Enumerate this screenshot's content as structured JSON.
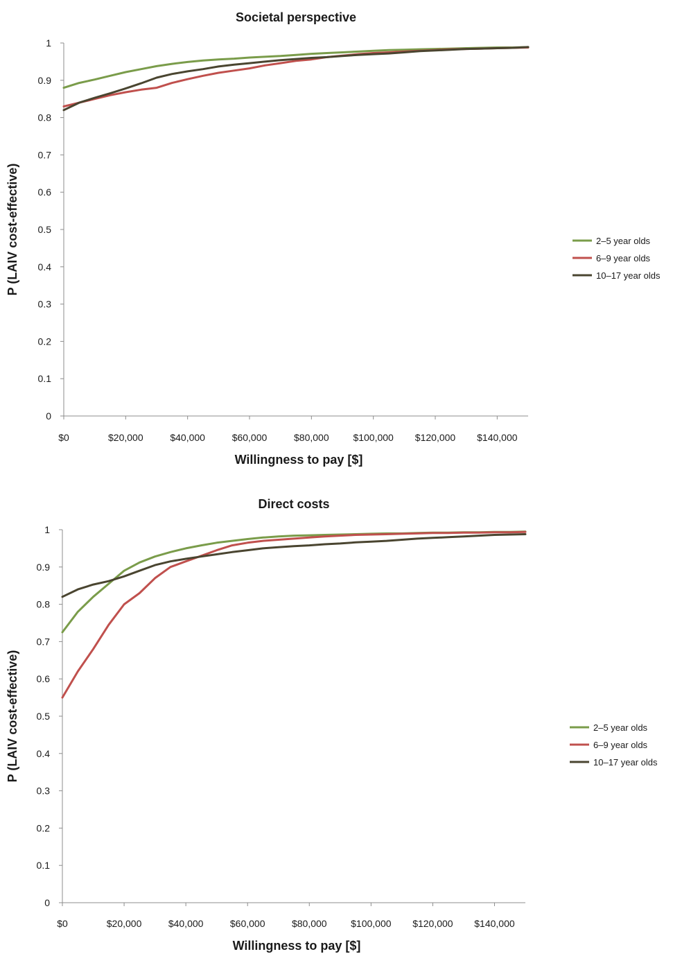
{
  "chart_data": [
    {
      "type": "line",
      "title": "Societal perspective",
      "xlabel": "Willingness to pay [$]",
      "ylabel": "P (LAIV cost-effective)",
      "xlim": [
        0,
        150000
      ],
      "ylim": [
        0,
        1
      ],
      "x_ticks": [
        "$0",
        "$20,000",
        "$40,000",
        "$60,000",
        "$80,000",
        "$100,000",
        "$120,000",
        "$140,000"
      ],
      "y_ticks": [
        "0",
        "0.1",
        "0.2",
        "0.3",
        "0.4",
        "0.5",
        "0.6",
        "0.7",
        "0.8",
        "0.9",
        "1"
      ],
      "grid": false,
      "legend_position": "right",
      "x": [
        0,
        5000,
        10000,
        15000,
        20000,
        25000,
        30000,
        35000,
        40000,
        45000,
        50000,
        55000,
        60000,
        65000,
        70000,
        75000,
        80000,
        85000,
        90000,
        95000,
        100000,
        105000,
        110000,
        115000,
        120000,
        125000,
        130000,
        135000,
        140000,
        145000,
        150000
      ],
      "series": [
        {
          "name": "2–5 year olds",
          "color": "#7a9c4a",
          "values": [
            0.88,
            0.893,
            0.902,
            0.912,
            0.922,
            0.93,
            0.938,
            0.944,
            0.949,
            0.953,
            0.956,
            0.958,
            0.961,
            0.963,
            0.965,
            0.968,
            0.971,
            0.973,
            0.975,
            0.977,
            0.979,
            0.981,
            0.982,
            0.983,
            0.984,
            0.985,
            0.986,
            0.987,
            0.988,
            0.988,
            0.989
          ]
        },
        {
          "name": "6–9 year olds",
          "color": "#c0504d",
          "values": [
            0.83,
            0.84,
            0.85,
            0.86,
            0.868,
            0.875,
            0.88,
            0.893,
            0.903,
            0.912,
            0.92,
            0.926,
            0.932,
            0.94,
            0.946,
            0.952,
            0.956,
            0.962,
            0.966,
            0.97,
            0.973,
            0.975,
            0.977,
            0.979,
            0.981,
            0.983,
            0.984,
            0.985,
            0.986,
            0.987,
            0.988
          ]
        },
        {
          "name": "10–17 year olds",
          "color": "#4a4530",
          "values": [
            0.82,
            0.84,
            0.853,
            0.865,
            0.878,
            0.892,
            0.907,
            0.917,
            0.924,
            0.93,
            0.937,
            0.942,
            0.946,
            0.95,
            0.954,
            0.957,
            0.96,
            0.962,
            0.965,
            0.968,
            0.97,
            0.972,
            0.975,
            0.978,
            0.98,
            0.982,
            0.984,
            0.985,
            0.986,
            0.987,
            0.989
          ]
        }
      ]
    },
    {
      "type": "line",
      "title": "Direct costs",
      "xlabel": "Willingness to pay [$]",
      "ylabel": "P (LAIV cost-effective)",
      "xlim": [
        0,
        150000
      ],
      "ylim": [
        0,
        1
      ],
      "x_ticks": [
        "$0",
        "$20,000",
        "$40,000",
        "$60,000",
        "$80,000",
        "$100,000",
        "$120,000",
        "$140,000"
      ],
      "y_ticks": [
        "0",
        "0.1",
        "0.2",
        "0.3",
        "0.4",
        "0.5",
        "0.6",
        "0.7",
        "0.8",
        "0.9",
        "1"
      ],
      "grid": false,
      "legend_position": "right",
      "x": [
        0,
        5000,
        10000,
        15000,
        20000,
        25000,
        30000,
        35000,
        40000,
        45000,
        50000,
        55000,
        60000,
        65000,
        70000,
        75000,
        80000,
        85000,
        90000,
        95000,
        100000,
        105000,
        110000,
        115000,
        120000,
        125000,
        130000,
        135000,
        140000,
        145000,
        150000
      ],
      "series": [
        {
          "name": "2–5 year olds",
          "color": "#7a9c4a",
          "values": [
            0.725,
            0.78,
            0.82,
            0.855,
            0.89,
            0.912,
            0.928,
            0.94,
            0.95,
            0.958,
            0.965,
            0.97,
            0.975,
            0.979,
            0.982,
            0.984,
            0.985,
            0.986,
            0.987,
            0.988,
            0.989,
            0.99,
            0.99,
            0.991,
            0.992,
            0.992,
            0.993,
            0.993,
            0.994,
            0.994,
            0.995
          ]
        },
        {
          "name": "6–9 year olds",
          "color": "#c0504d",
          "values": [
            0.55,
            0.62,
            0.68,
            0.745,
            0.8,
            0.83,
            0.87,
            0.9,
            0.915,
            0.93,
            0.945,
            0.958,
            0.965,
            0.97,
            0.973,
            0.976,
            0.979,
            0.982,
            0.984,
            0.986,
            0.987,
            0.988,
            0.989,
            0.99,
            0.991,
            0.991,
            0.992,
            0.992,
            0.993,
            0.993,
            0.994
          ]
        },
        {
          "name": "10–17 year olds",
          "color": "#4a4530",
          "values": [
            0.82,
            0.84,
            0.853,
            0.862,
            0.875,
            0.89,
            0.905,
            0.915,
            0.922,
            0.928,
            0.934,
            0.94,
            0.945,
            0.95,
            0.953,
            0.956,
            0.958,
            0.961,
            0.963,
            0.966,
            0.968,
            0.97,
            0.973,
            0.976,
            0.978,
            0.98,
            0.982,
            0.984,
            0.986,
            0.987,
            0.988
          ]
        }
      ]
    }
  ]
}
